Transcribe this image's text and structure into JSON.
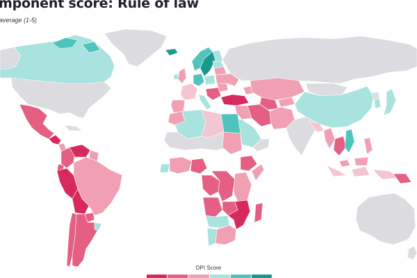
{
  "header": {
    "title": "mponent score: Rule of law",
    "subtitle": "average (1-5)"
  },
  "legend": {
    "title": "DPI Score",
    "colors": [
      "#d7295d",
      "#e45f82",
      "#f1a0b4",
      "#a8e3df",
      "#4fc4bd",
      "#1a9890"
    ]
  },
  "map_colors": {
    "no_data": "#dcdbe0",
    "very_low": "#d7295d",
    "low": "#e45f82",
    "mid_low": "#f1a0b4",
    "pale_low": "#f5c5d1",
    "mid_high": "#a8e3df",
    "high": "#4fc4bd",
    "very_high": "#1a9890",
    "border": "#ffffff"
  }
}
